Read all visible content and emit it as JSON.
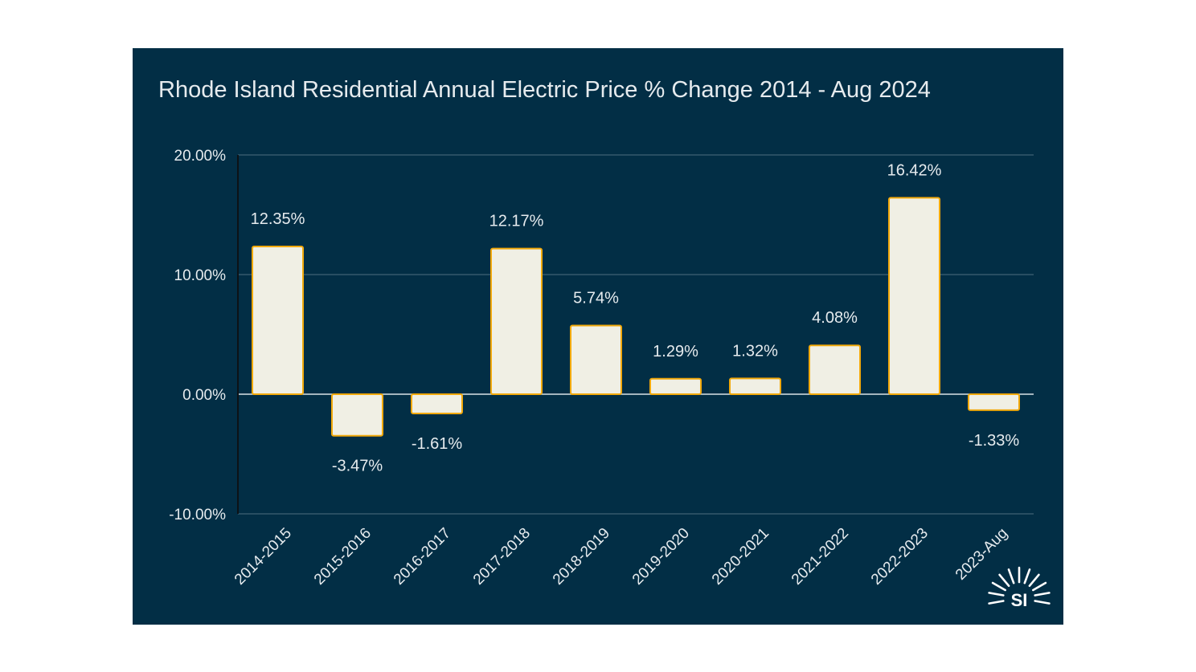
{
  "chart_data": {
    "type": "bar",
    "title": "Rhode Island Residential Annual Electric Price % Change 2014 - Aug 2024",
    "categories": [
      "2014-2015",
      "2015-2016",
      "2016-2017",
      "2017-2018",
      "2018-2019",
      "2019-2020",
      "2020-2021",
      "2021-2022",
      "2022-2023",
      "2023-Aug"
    ],
    "values": [
      12.35,
      -3.47,
      -1.61,
      12.17,
      5.74,
      1.29,
      1.32,
      4.08,
      16.42,
      -1.33
    ],
    "data_labels": [
      "12.35%",
      "-3.47%",
      "-1.61%",
      "12.17%",
      "5.74%",
      "1.29%",
      "1.32%",
      "4.08%",
      "16.42%",
      "-1.33%"
    ],
    "yticks": [
      20,
      10,
      0,
      -10
    ],
    "ytick_labels": [
      "20.00%",
      "10.00%",
      "0.00%",
      "-10.00%"
    ],
    "ylim": [
      -10,
      20
    ],
    "xlabel": "",
    "ylabel": "",
    "grid": true,
    "legend": "none"
  },
  "colors": {
    "background": "#022e45",
    "bar_fill": "#f0efe4",
    "bar_stroke": "#f2a90b",
    "grid": "#4d6d7e",
    "text": "#e6ebee"
  },
  "logo": {
    "text": "SI",
    "icon": "sun-rays-icon"
  }
}
